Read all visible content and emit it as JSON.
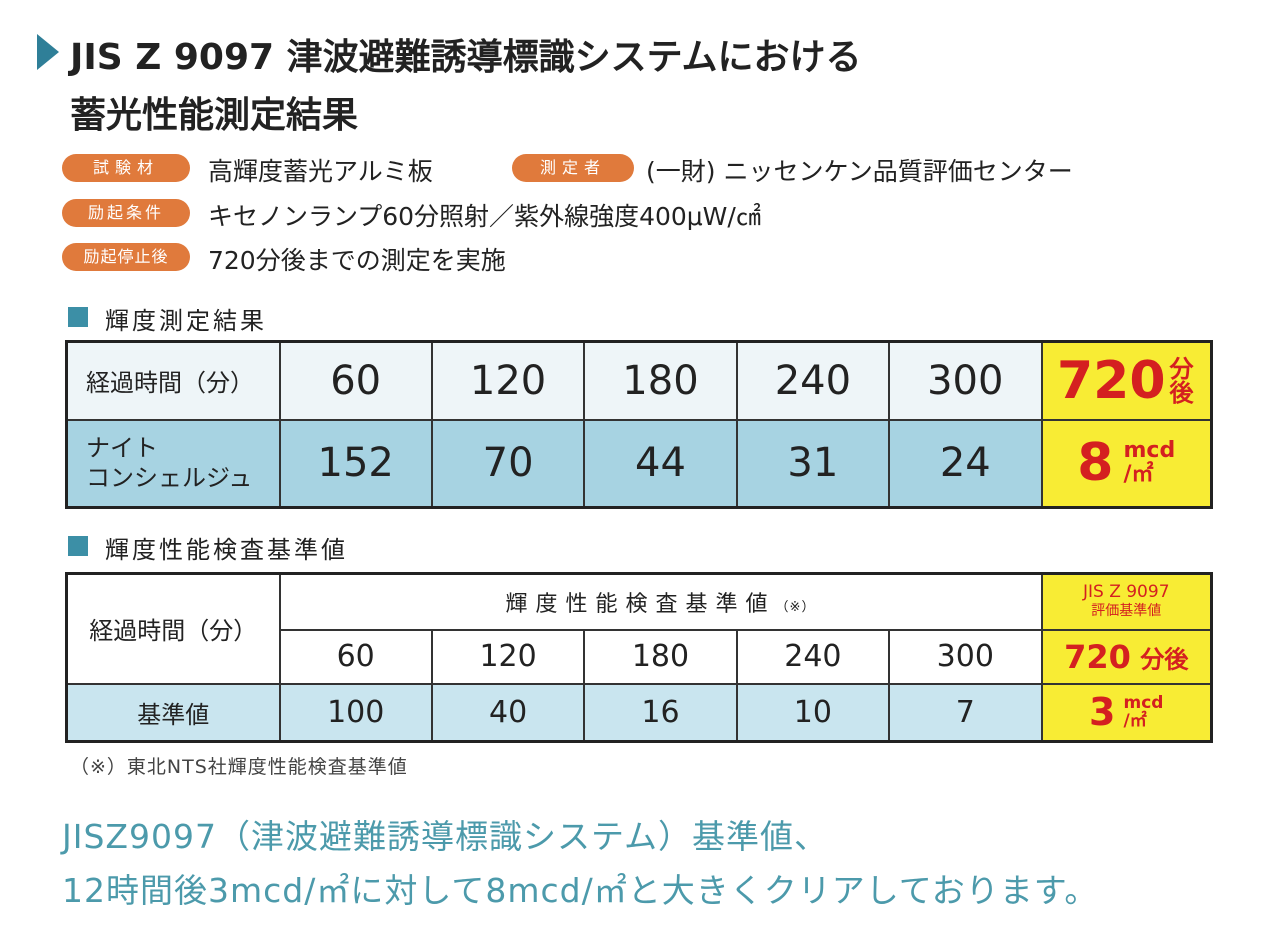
{
  "header": {
    "title_lines": [
      "JIS Z 9097 津波避難誘導標識システムにおける",
      "蓄光性能測定結果"
    ]
  },
  "info": [
    {
      "label": "試験材",
      "value": "高輝度蓄光アルミ板"
    },
    {
      "label": "測定者",
      "value": "(一財) ニッセンケン品質評価センター"
    },
    {
      "label": "励起条件",
      "value": "キセノンランプ60分照射／紫外線強度400μW/㎠"
    },
    {
      "label": "励起停止後",
      "value": "720分後までの測定を実施"
    }
  ],
  "results": {
    "heading": "輝度測定結果",
    "row_headers": [
      "経過時間（分）",
      [
        "ナイト",
        "コンシェルジュ"
      ]
    ],
    "times": [
      60,
      120,
      180,
      240,
      300
    ],
    "values": [
      152,
      70,
      44,
      31,
      24
    ],
    "final": {
      "time": 720,
      "time_unit": "分後",
      "value": 8,
      "unit_top": "mcd",
      "unit_bottom": "/㎡"
    }
  },
  "standard": {
    "heading": "輝度性能検査基準値",
    "time_header": "経過時間（分）",
    "group_header": "輝度性能検査基準値",
    "group_note": "（※）",
    "jis_header": [
      "JIS Z 9097",
      "評価基準値"
    ],
    "times": [
      60,
      120,
      180,
      240,
      300
    ],
    "row_header": "基準値",
    "values": [
      100,
      40,
      16,
      10,
      7
    ],
    "final": {
      "time": 720,
      "time_unit": "分後",
      "value": 3,
      "unit_top": "mcd",
      "unit_bottom": "/㎡"
    }
  },
  "footnote": "（※）東北NTS社輝度性能検査基準値",
  "summary_lines": [
    "JISZ9097（津波避難誘導標識システム）基準値、",
    "12時間後3mcd/㎡に対して8mcd/㎡と大きくクリアしております。"
  ]
}
